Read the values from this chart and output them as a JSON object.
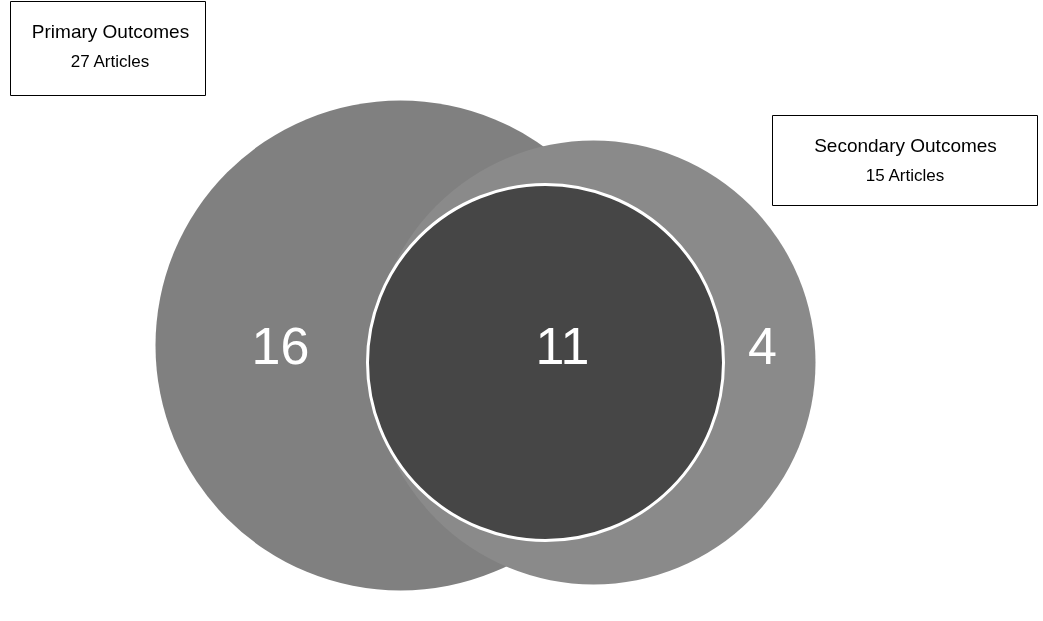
{
  "chart_data": {
    "type": "other",
    "categories": [
      null,
      null,
      null
    ],
    "values": [
      16,
      11,
      4
    ],
    "colors": [
      "#808080",
      "#464646",
      "#8a8a8a"
    ],
    "data_labels": true,
    "annotations": [
      "Primary Outcomes",
      "27 Articles",
      "Secondary Outcomes",
      "15 Articles"
    ]
  }
}
